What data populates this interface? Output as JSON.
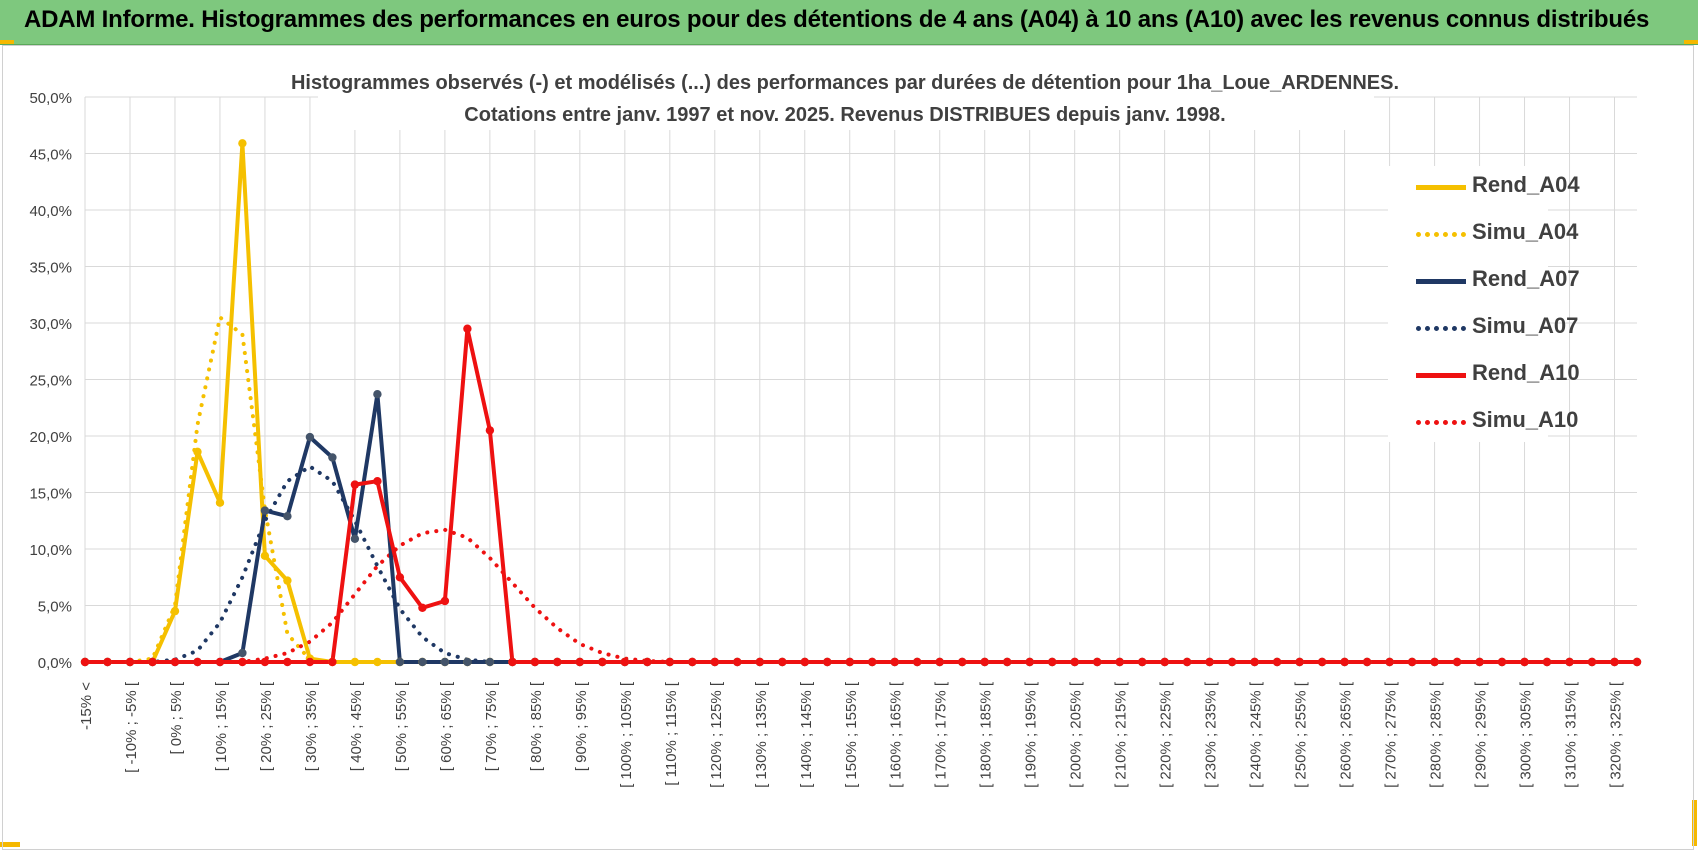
{
  "header": {
    "title": "ADAM Informe. Histogrammes des performances en euros pour des détentions de 4 ans (A04) à 10 ans (A10) avec les revenus connus distribués"
  },
  "colors": {
    "header_bg": "#7ec87e",
    "accent": "#f5b800",
    "a04": "#f5c000",
    "a07": "#1f3864",
    "a10": "#ee1111",
    "grid": "#d9d9d9",
    "axis_text": "#404040"
  },
  "chart_data": {
    "type": "line",
    "title": "Histogrammes observés (-) et modélisés (...) des performances par durées de détention pour 1ha_Loue_ARDENNES.",
    "subtitle": "Cotations entre janv. 1997 et nov. 2025. Revenus DISTRIBUES depuis janv. 1998.",
    "xlabel": "",
    "ylabel": "",
    "ylim": [
      0,
      50
    ],
    "yticks": [
      "0,0%",
      "5,0%",
      "10,0%",
      "15,0%",
      "20,0%",
      "25,0%",
      "30,0%",
      "35,0%",
      "40,0%",
      "45,0%",
      "50,0%"
    ],
    "categories": [
      "-15% <",
      "[ -15% ; -10% [",
      "[ -10% ; -5% [",
      "[ -5% ; 0% [",
      "[ 0% ; 5% [",
      "[ 5% ; 10% [",
      "[ 10% ; 15% [",
      "[ 15% ; 20% [",
      "[ 20% ; 25% [",
      "[ 25% ; 30% [",
      "[ 30% ; 35% [",
      "[ 35% ; 40% [",
      "[ 40% ; 45% [",
      "[ 45% ; 50% [",
      "[ 50% ; 55% [",
      "[ 55% ; 60% [",
      "[ 60% ; 65% [",
      "[ 65% ; 70% [",
      "[ 70% ; 75% [",
      "[ 75% ; 80% [",
      "[ 80% ; 85% [",
      "[ 85% ; 90% [",
      "[ 90% ; 95% [",
      "[ 95% ; 100% [",
      "[ 100% ; 105% [",
      "[ 105% ; 110% [",
      "[ 110% ; 115% [",
      "[ 115% ; 120% [",
      "[ 120% ; 125% [",
      "[ 125% ; 130% [",
      "[ 130% ; 135% [",
      "[ 135% ; 140% [",
      "[ 140% ; 145% [",
      "[ 145% ; 150% [",
      "[ 150% ; 155% [",
      "[ 155% ; 160% [",
      "[ 160% ; 165% [",
      "[ 165% ; 170% [",
      "[ 170% ; 175% [",
      "[ 175% ; 180% [",
      "[ 180% ; 185% [",
      "[ 185% ; 190% [",
      "[ 190% ; 195% [",
      "[ 195% ; 200% [",
      "[ 200% ; 205% [",
      "[ 205% ; 210% [",
      "[ 210% ; 215% [",
      "[ 215% ; 220% [",
      "[ 220% ; 225% [",
      "[ 225% ; 230% [",
      "[ 230% ; 235% [",
      "[ 235% ; 240% [",
      "[ 240% ; 245% [",
      "[ 245% ; 250% [",
      "[ 250% ; 255% [",
      "[ 255% ; 260% [",
      "[ 260% ; 265% [",
      "[ 265% ; 270% [",
      "[ 270% ; 275% [",
      "[ 275% ; 280% [",
      "[ 280% ; 285% [",
      "[ 285% ; 290% [",
      "[ 290% ; 295% [",
      "[ 295% ; 300% [",
      "[ 300% ; 305% [",
      "[ 305% ; 310% [",
      "[ 310% ; 315% [",
      "[ 315% ; 320% [",
      "[ 320% ; 325% [",
      "[ 325% ; 330% ["
    ],
    "visible_tick_labels": [
      "-15% <",
      "[ -10% ; -5% [",
      "[ 0% ; 5% [",
      "[ 10% ; 15% [",
      "[ 20% ; 25% [",
      "[ 30% ; 35% [",
      "[ 40% ; 45% [",
      "[ 50% ; 55% [",
      "[ 60% ; 65% [",
      "[ 70% ; 75% [",
      "[ 80% ; 85% [",
      "[ 90% ; 95% [",
      "[ 100% ; 105% [",
      "[ 110% ; 115% [",
      "[ 120% ; 125% [",
      "[ 130% ; 135% [",
      "[ 140% ; 145% [",
      "[ 150% ; 155% [",
      "[ 160% ; 165% [",
      "[ 170% ; 175% [",
      "[ 180% ; 185% [",
      "[ 190% ; 195% [",
      "[ 200% ; 205% [",
      "[ 210% ; 215% [",
      "[ 220% ; 225% [",
      "[ 230% ; 235% [",
      "[ 240% ; 245% [",
      "[ 250% ; 255% [",
      "[ 260% ; 265% [",
      "[ 270% ; 275% [",
      "[ 280% ; 285% [",
      "[ 290% ; 295% [",
      "[ 300% ; 305% [",
      "[ 310% ; 315% [",
      "[ 320% ; 325% ["
    ],
    "grid": true,
    "legend_position": "right",
    "series": [
      {
        "name": "Rend_A04",
        "style": "solid",
        "color": "#f5c000",
        "values": [
          0,
          0,
          0,
          0,
          4.5,
          18.6,
          14.1,
          45.9,
          9.4,
          7.2,
          0.3,
          0,
          0,
          0,
          0,
          0,
          0,
          0,
          0,
          0,
          0,
          0,
          0,
          0,
          0,
          0,
          0,
          0,
          0,
          0,
          0,
          0,
          0,
          0,
          0,
          0,
          0,
          0,
          0,
          0,
          0,
          0,
          0,
          0,
          0,
          0,
          0,
          0,
          0,
          0,
          0,
          0,
          0,
          0,
          0,
          0,
          0,
          0,
          0,
          0,
          0,
          0,
          0,
          0,
          0,
          0,
          0,
          0,
          0,
          0
        ]
      },
      {
        "name": "Simu_A04",
        "style": "dotted",
        "color": "#f5c000",
        "values": [
          0,
          0,
          0,
          0.3,
          5,
          21,
          30.5,
          29,
          13.5,
          2.5,
          0.2,
          0,
          0,
          0,
          0,
          0,
          0,
          0,
          0,
          0,
          0,
          0,
          0,
          0,
          0,
          0,
          0,
          0,
          0,
          0,
          0,
          0,
          0,
          0,
          0,
          0,
          0,
          0,
          0,
          0,
          0,
          0,
          0,
          0,
          0,
          0,
          0,
          0,
          0,
          0,
          0,
          0,
          0,
          0,
          0,
          0,
          0,
          0,
          0,
          0,
          0,
          0,
          0,
          0,
          0,
          0,
          0,
          0,
          0,
          0
        ]
      },
      {
        "name": "Rend_A07",
        "style": "solid",
        "color": "#1f3864",
        "values": [
          0,
          0,
          0,
          0,
          0,
          0,
          0,
          0.8,
          13.4,
          12.9,
          19.9,
          18.1,
          10.9,
          23.7,
          0,
          0,
          0,
          0,
          0,
          0,
          0,
          0,
          0,
          0,
          0,
          0,
          0,
          0,
          0,
          0,
          0,
          0,
          0,
          0,
          0,
          0,
          0,
          0,
          0,
          0,
          0,
          0,
          0,
          0,
          0,
          0,
          0,
          0,
          0,
          0,
          0,
          0,
          0,
          0,
          0,
          0,
          0,
          0,
          0,
          0,
          0,
          0,
          0,
          0,
          0,
          0,
          0,
          0,
          0,
          0
        ]
      },
      {
        "name": "Simu_A07",
        "style": "dotted",
        "color": "#1f3864",
        "values": [
          0,
          0,
          0,
          0,
          0.2,
          1,
          3.5,
          7.5,
          12.5,
          16,
          17.3,
          16,
          12.5,
          8.5,
          4.7,
          2.2,
          0.8,
          0.2,
          0,
          0,
          0,
          0,
          0,
          0,
          0,
          0,
          0,
          0,
          0,
          0,
          0,
          0,
          0,
          0,
          0,
          0,
          0,
          0,
          0,
          0,
          0,
          0,
          0,
          0,
          0,
          0,
          0,
          0,
          0,
          0,
          0,
          0,
          0,
          0,
          0,
          0,
          0,
          0,
          0,
          0,
          0,
          0,
          0,
          0,
          0,
          0,
          0,
          0,
          0,
          0
        ]
      },
      {
        "name": "Rend_A10",
        "style": "solid",
        "color": "#ee1111",
        "values": [
          0,
          0,
          0,
          0,
          0,
          0,
          0,
          0,
          0,
          0,
          0,
          0,
          15.7,
          16,
          7.5,
          4.8,
          5.4,
          29.5,
          20.5,
          0,
          0,
          0,
          0,
          0,
          0,
          0,
          0,
          0,
          0,
          0,
          0,
          0,
          0,
          0,
          0,
          0,
          0,
          0,
          0,
          0,
          0,
          0,
          0,
          0,
          0,
          0,
          0,
          0,
          0,
          0,
          0,
          0,
          0,
          0,
          0,
          0,
          0,
          0,
          0,
          0,
          0,
          0,
          0,
          0,
          0,
          0,
          0,
          0,
          0,
          0
        ]
      },
      {
        "name": "Simu_A10",
        "style": "dotted",
        "color": "#ee1111",
        "values": [
          0,
          0,
          0,
          0,
          0,
          0,
          0,
          0,
          0.3,
          0.8,
          1.8,
          3.5,
          6,
          8.5,
          10.3,
          11.4,
          11.7,
          11,
          9.2,
          7,
          4.8,
          3,
          1.6,
          0.8,
          0.3,
          0.1,
          0,
          0,
          0,
          0,
          0,
          0,
          0,
          0,
          0,
          0,
          0,
          0,
          0,
          0,
          0,
          0,
          0,
          0,
          0,
          0,
          0,
          0,
          0,
          0,
          0,
          0,
          0,
          0,
          0,
          0,
          0,
          0,
          0,
          0,
          0,
          0,
          0,
          0,
          0,
          0,
          0,
          0,
          0,
          0
        ]
      }
    ]
  }
}
